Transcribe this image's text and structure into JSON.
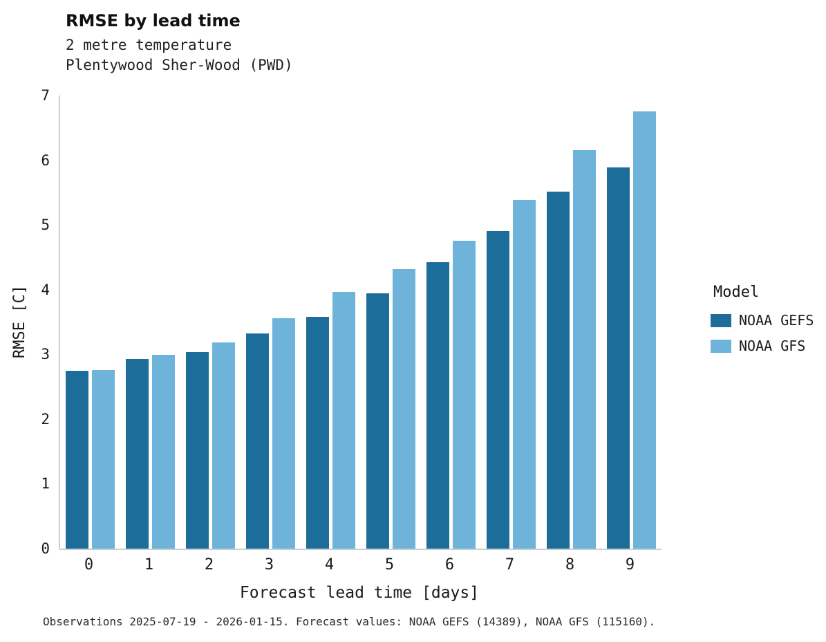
{
  "header": {
    "title": "RMSE by lead time",
    "subtitle1": "2 metre temperature",
    "subtitle2": "Plentywood Sher-Wood (PWD)"
  },
  "chart_data": {
    "type": "bar",
    "title": "RMSE by lead time",
    "subtitle": [
      "2 metre temperature",
      "Plentywood Sher-Wood (PWD)"
    ],
    "categories": [
      0,
      1,
      2,
      3,
      4,
      5,
      6,
      7,
      8,
      9
    ],
    "series": [
      {
        "name": "NOAA GEFS",
        "color": "#1d6d9b",
        "values": [
          2.75,
          2.93,
          3.04,
          3.32,
          3.58,
          3.94,
          4.42,
          4.91,
          5.51,
          5.89
        ]
      },
      {
        "name": "NOAA GFS",
        "color": "#6eb4da",
        "values": [
          2.76,
          2.99,
          3.19,
          3.56,
          3.97,
          4.32,
          4.76,
          5.39,
          6.16,
          6.75
        ]
      }
    ],
    "xlabel": "Forecast lead time [days]",
    "ylabel": "RMSE [C]",
    "ylim": [
      0,
      7
    ],
    "yticks": [
      0,
      1,
      2,
      3,
      4,
      5,
      6,
      7
    ],
    "grid": false,
    "legend_title": "Model",
    "legend_position": "right"
  },
  "footer": {
    "caption": "Observations 2025-07-19 - 2026-01-15. Forecast values: NOAA GEFS (14389), NOAA GFS (115160)."
  }
}
